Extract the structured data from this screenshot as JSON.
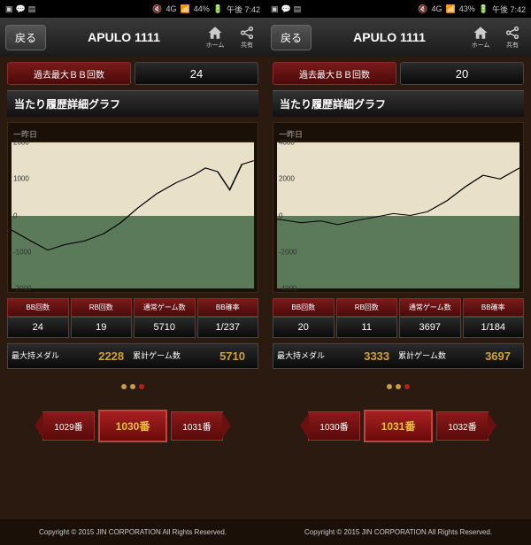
{
  "phones": [
    {
      "status": {
        "battery": "44%",
        "time": "午後 7:42",
        "network": "4G"
      },
      "nav": {
        "back": "戻る",
        "title": "APULO 1111",
        "home": "ホーム",
        "share": "共有"
      },
      "bb": {
        "label": "過去最大ＢＢ回数",
        "value": "24"
      },
      "section_title": "当たり履歴詳細グラフ",
      "chart": {
        "period_label": "一昨日",
        "ymin": -2000,
        "ymax": 2000,
        "yticks": [
          2000,
          1000,
          0,
          -1000,
          -2000
        ],
        "upper_bg": "#e8e0c8",
        "lower_bg": "#5a7a5a",
        "line_color": "#000000",
        "points": [
          [
            0,
            -400
          ],
          [
            8,
            -700
          ],
          [
            15,
            -950
          ],
          [
            22,
            -800
          ],
          [
            30,
            -700
          ],
          [
            38,
            -500
          ],
          [
            45,
            -200
          ],
          [
            52,
            200
          ],
          [
            60,
            600
          ],
          [
            68,
            900
          ],
          [
            75,
            1100
          ],
          [
            80,
            1300
          ],
          [
            85,
            1200
          ],
          [
            90,
            700
          ],
          [
            95,
            1400
          ],
          [
            100,
            1500
          ]
        ]
      },
      "stats": {
        "headers": [
          "BB回数",
          "RB回数",
          "通常ゲーム数",
          "BB確率"
        ],
        "values": [
          "24",
          "19",
          "5710",
          "1/237"
        ]
      },
      "medals": {
        "max_label": "最大持メダル",
        "max_val": "2228",
        "total_label": "累計ゲーム数",
        "total_val": "5710"
      },
      "dots_active": 2,
      "machines": {
        "prev": "1029番",
        "current": "1030番",
        "next": "1031番"
      },
      "copyright": "Copyright © 2015 JIN CORPORATION All Rights Reserved."
    },
    {
      "status": {
        "battery": "43%",
        "time": "午後 7:42",
        "network": "4G"
      },
      "nav": {
        "back": "戻る",
        "title": "APULO 1111",
        "home": "ホーム",
        "share": "共有"
      },
      "bb": {
        "label": "過去最大ＢＢ回数",
        "value": "20"
      },
      "section_title": "当たり履歴詳細グラフ",
      "chart": {
        "period_label": "一昨日",
        "ymin": -4000,
        "ymax": 4000,
        "yticks": [
          4000,
          2000,
          0,
          -2000,
          -4000
        ],
        "upper_bg": "#e8e0c8",
        "lower_bg": "#5a7a5a",
        "line_color": "#000000",
        "points": [
          [
            0,
            -200
          ],
          [
            10,
            -400
          ],
          [
            18,
            -300
          ],
          [
            25,
            -500
          ],
          [
            32,
            -300
          ],
          [
            40,
            -100
          ],
          [
            48,
            100
          ],
          [
            55,
            0
          ],
          [
            62,
            200
          ],
          [
            70,
            800
          ],
          [
            78,
            1600
          ],
          [
            85,
            2200
          ],
          [
            92,
            2000
          ],
          [
            100,
            2600
          ]
        ]
      },
      "stats": {
        "headers": [
          "BB回数",
          "RB回数",
          "通常ゲーム数",
          "BB確率"
        ],
        "values": [
          "20",
          "11",
          "3697",
          "1/184"
        ]
      },
      "medals": {
        "max_label": "最大持メダル",
        "max_val": "3333",
        "total_label": "累計ゲーム数",
        "total_val": "3697"
      },
      "dots_active": 2,
      "machines": {
        "prev": "1030番",
        "current": "1031番",
        "next": "1032番"
      },
      "copyright": "Copyright © 2015 JIN CORPORATION All Rights Reserved."
    }
  ]
}
